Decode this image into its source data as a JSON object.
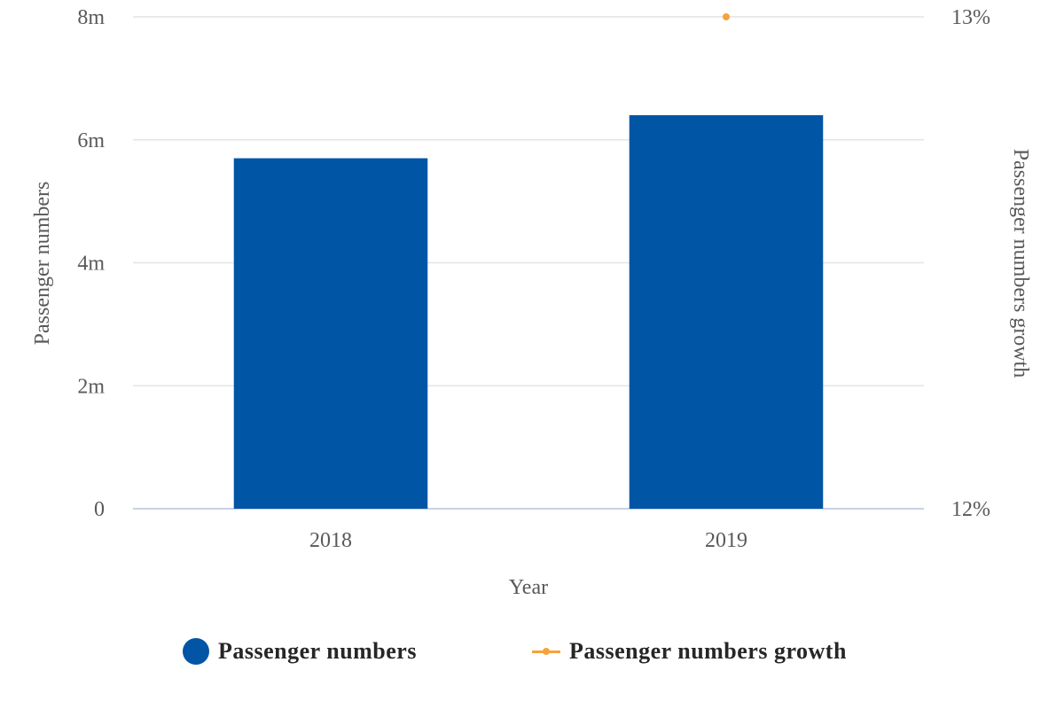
{
  "chart_data": {
    "type": "bar",
    "categories": [
      "2018",
      "2019"
    ],
    "xlabel": "Year",
    "ylabel": "Passenger numbers",
    "ylabel_right": "Passenger numbers growth",
    "ylim": [
      0,
      8000000
    ],
    "ylim_right": [
      12,
      13
    ],
    "y_ticks": [
      {
        "value": 0,
        "label": "0"
      },
      {
        "value": 2000000,
        "label": "2m"
      },
      {
        "value": 4000000,
        "label": "4m"
      },
      {
        "value": 6000000,
        "label": "6m"
      },
      {
        "value": 8000000,
        "label": "8m"
      }
    ],
    "y_ticks_right": [
      {
        "value": 12,
        "label": "12%"
      },
      {
        "value": 13,
        "label": "13%"
      }
    ],
    "series": [
      {
        "name": "Passenger numbers",
        "type": "bar",
        "axis": "left",
        "color": "#0155a5",
        "values": [
          5700000,
          6400000
        ]
      },
      {
        "name": "Passenger numbers growth",
        "type": "line",
        "axis": "right",
        "color": "#f7a23a",
        "values": [
          null,
          13
        ]
      }
    ],
    "grid": true,
    "legend_position": "bottom"
  },
  "legend": {
    "items": [
      {
        "label": "Passenger numbers"
      },
      {
        "label": "Passenger numbers growth"
      }
    ]
  }
}
